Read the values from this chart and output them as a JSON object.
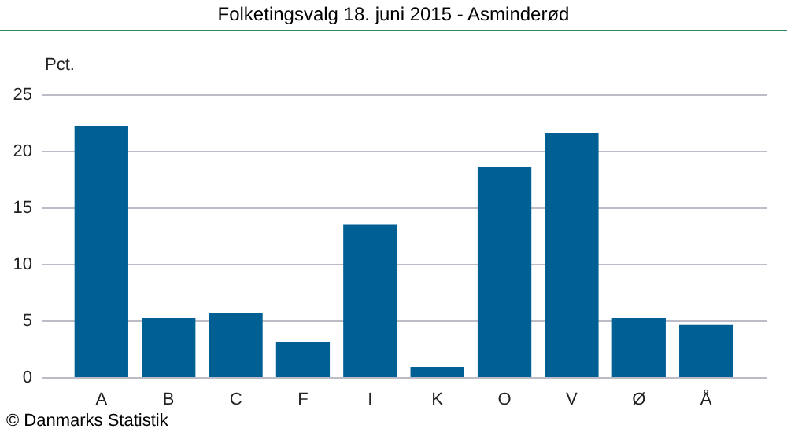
{
  "chart_data": {
    "type": "bar",
    "title": "Folketingsvalg 18. juni 2015 - Asminderød",
    "ylabel": "Pct.",
    "categories": [
      "A",
      "B",
      "C",
      "F",
      "I",
      "K",
      "O",
      "V",
      "Ø",
      "Å"
    ],
    "values": [
      22.2,
      5.2,
      5.7,
      3.1,
      13.5,
      0.9,
      18.6,
      21.6,
      5.2,
      4.6
    ],
    "color": "#006094",
    "ylim": [
      0,
      25
    ],
    "yticks": [
      0,
      5,
      10,
      15,
      20,
      25
    ],
    "grid": "y",
    "annotations": [
      "© Danmarks Statistik"
    ]
  }
}
